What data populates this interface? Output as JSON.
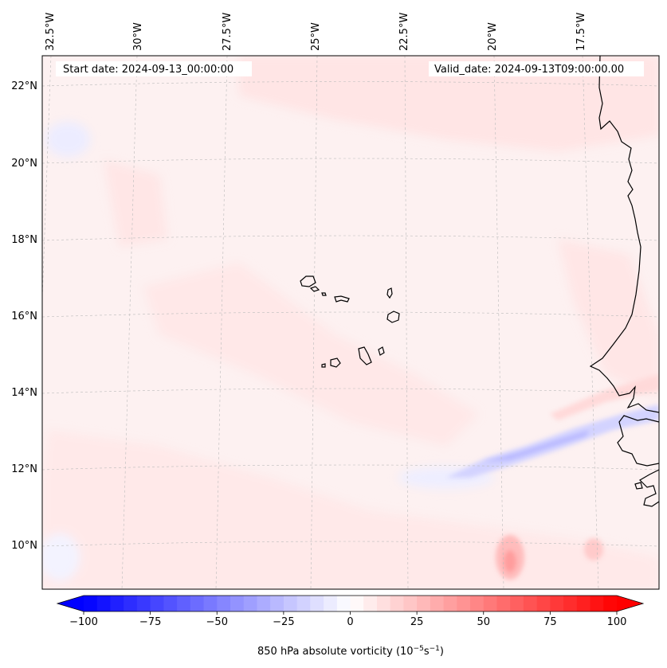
{
  "map": {
    "start_label": "Start date: 2024-09-13_00:00:00",
    "valid_label": "Valid_date: 2024-09-13T09:00:00.00",
    "lon_labels": [
      "32.5°W",
      "30°W",
      "27.5°W",
      "25°W",
      "22.5°W",
      "20°W",
      "17.5°W"
    ],
    "lat_labels": [
      "22°N",
      "20°N",
      "18°N",
      "16°N",
      "14°N",
      "12°N",
      "10°N"
    ],
    "field": "850 hPa absolute vorticity",
    "coastline_color": "#000000",
    "gridline_color": "#bbbbbb"
  },
  "colorbar": {
    "label": "850 hPa absolute vorticity (10",
    "label_exp1": "−5",
    "label_mid": "s",
    "label_exp2": "−1",
    "label_end": ")",
    "ticks": [
      "−100",
      "−75",
      "−50",
      "−25",
      "0",
      "25",
      "50",
      "75",
      "100"
    ],
    "tick_values": [
      -100,
      -75,
      -50,
      -25,
      0,
      25,
      50,
      75,
      100
    ],
    "min": -100,
    "max": 100,
    "step": 5,
    "cmap": "bwr",
    "low_color": "#0000ff",
    "mid_color": "#ffffff",
    "high_color": "#ff0000",
    "extend": "both"
  }
}
